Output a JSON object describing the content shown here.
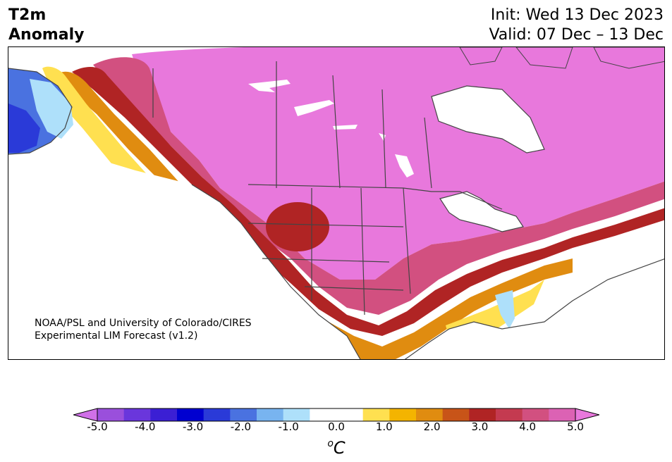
{
  "header": {
    "title_line1": "T2m",
    "title_line2": "Anomaly",
    "init": "Init: Wed 13 Dec 2023",
    "valid": "Valid: 07 Dec – 13 Dec"
  },
  "map": {
    "credit_line1": "NOAA/PSL and University of Colorado/CIRES",
    "credit_line2": "Experimental LIM Forecast (v1.2)"
  },
  "colorbar": {
    "ticks": [
      "-5.0",
      "-4.0",
      "-3.0",
      "-2.0",
      "-1.0",
      "0.0",
      "1.0",
      "2.0",
      "3.0",
      "4.0",
      "5.0"
    ],
    "unit_sup": "o",
    "unit_main": "C",
    "colors": [
      "#d070e8",
      "#9a4fdc",
      "#6a36dc",
      "#3b1fd4",
      "#0000d0",
      "#2a3ad8",
      "#4a72e0",
      "#78b4f0",
      "#aee0fa",
      "#ffffff",
      "#ffffff",
      "#ffe050",
      "#f4b400",
      "#e08c10",
      "#c85418",
      "#b02424",
      "#c43a50",
      "#d25080",
      "#dc62b4",
      "#e878dc"
    ]
  }
}
